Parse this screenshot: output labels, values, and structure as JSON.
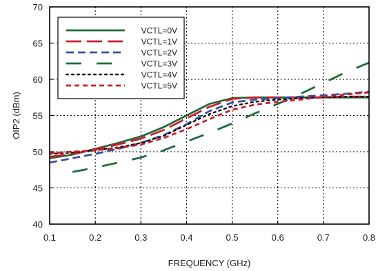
{
  "chart_data": {
    "type": "line",
    "title": "",
    "xlabel": "FREQUENCY (GHz)",
    "ylabel": "OIP2 (dBm)",
    "xlim": [
      0.1,
      0.8
    ],
    "ylim": [
      40,
      70
    ],
    "xticks": [
      0.1,
      0.2,
      0.3,
      0.4,
      0.5,
      0.6,
      0.7,
      0.8
    ],
    "yticks": [
      40,
      45,
      50,
      55,
      60,
      65,
      70
    ],
    "xtick_labels": [
      "0.1",
      "0.2",
      "0.3",
      "0.4",
      "0.5",
      "0.6",
      "0.7",
      "0.8"
    ],
    "ytick_labels": [
      "40",
      "45",
      "50",
      "55",
      "60",
      "65",
      "70"
    ],
    "grid": true,
    "legend_position": "top-left",
    "series": [
      {
        "name": "VCTL=0V",
        "color": "#1e6b3a",
        "dash": "solid",
        "x": [
          0.1,
          0.15,
          0.2,
          0.25,
          0.3,
          0.35,
          0.4,
          0.45,
          0.5,
          0.55,
          0.6,
          0.65,
          0.7,
          0.75,
          0.8
        ],
        "y": [
          49.1,
          49.6,
          50.4,
          51.2,
          52.1,
          53.4,
          55.0,
          56.6,
          57.4,
          57.5,
          57.5,
          57.5,
          57.5,
          57.5,
          57.5
        ]
      },
      {
        "name": "VCTL=1V",
        "color": "#c8202a",
        "dash": "longdash",
        "x": [
          0.1,
          0.15,
          0.2,
          0.25,
          0.3,
          0.35,
          0.4,
          0.45,
          0.5,
          0.55,
          0.6,
          0.65,
          0.7,
          0.75,
          0.8
        ],
        "y": [
          49.3,
          49.7,
          50.3,
          51.0,
          51.8,
          53.0,
          54.6,
          56.2,
          57.3,
          57.5,
          57.5,
          57.5,
          57.5,
          57.6,
          57.6
        ]
      },
      {
        "name": "VCTL=2V",
        "color": "#3b4fa0",
        "dash": "dash",
        "x": [
          0.1,
          0.15,
          0.2,
          0.25,
          0.3,
          0.35,
          0.4,
          0.45,
          0.5,
          0.55,
          0.6,
          0.65,
          0.7,
          0.75,
          0.8
        ],
        "y": [
          48.5,
          49.1,
          49.7,
          50.4,
          51.2,
          52.3,
          53.8,
          55.6,
          56.8,
          57.2,
          57.4,
          57.6,
          57.8,
          58.0,
          58.3
        ]
      },
      {
        "name": "VCTL=3V",
        "color": "#1e6b3a",
        "dash": "sparse",
        "x": [
          0.15,
          0.2,
          0.25,
          0.3,
          0.35,
          0.4,
          0.45,
          0.5,
          0.55,
          0.6,
          0.65,
          0.7,
          0.75,
          0.8
        ],
        "y": [
          47.2,
          47.8,
          48.5,
          49.2,
          50.2,
          51.4,
          52.6,
          53.9,
          55.3,
          56.6,
          58.0,
          59.5,
          61.0,
          62.3
        ]
      },
      {
        "name": "VCTL=4V",
        "color": "#111111",
        "dash": "dot",
        "x": [
          0.1,
          0.15,
          0.2,
          0.25,
          0.3,
          0.35,
          0.4,
          0.45,
          0.5,
          0.55,
          0.6,
          0.65,
          0.7,
          0.75,
          0.8
        ],
        "y": [
          49.7,
          49.9,
          50.2,
          50.6,
          51.2,
          52.2,
          53.7,
          55.2,
          56.3,
          56.9,
          57.2,
          57.4,
          57.5,
          57.6,
          57.6
        ]
      },
      {
        "name": "VCTL=5V",
        "color": "#c8202a",
        "dash": "shortdash",
        "x": [
          0.1,
          0.15,
          0.2,
          0.25,
          0.3,
          0.35,
          0.4,
          0.45,
          0.5,
          0.55,
          0.6,
          0.65,
          0.7,
          0.75,
          0.8
        ],
        "y": [
          49.8,
          50.0,
          50.2,
          50.5,
          51.0,
          51.9,
          53.1,
          54.5,
          55.8,
          56.5,
          56.9,
          57.2,
          57.6,
          57.9,
          58.2
        ]
      }
    ]
  }
}
